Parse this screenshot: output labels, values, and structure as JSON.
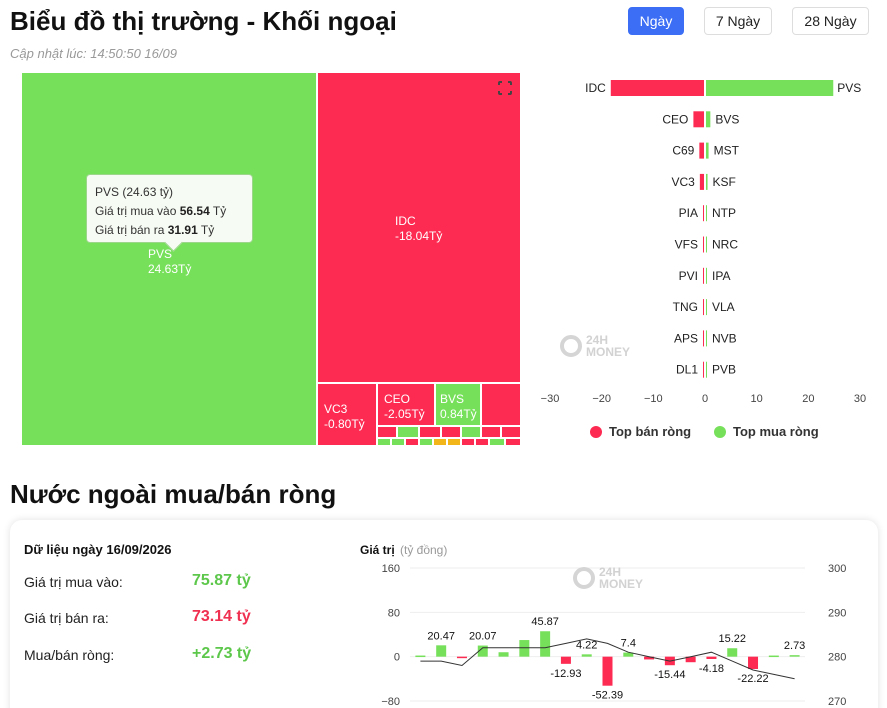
{
  "header": {
    "title": "Biểu đồ thị trường - Khối ngoại",
    "updated": "Cập nhật lúc: 14:50:50 16/09",
    "ranges": [
      "Ngày",
      "7 Ngày",
      "28 Ngày"
    ],
    "active_range": "Ngày"
  },
  "treemap": {
    "cells": [
      {
        "ticker": "PVS",
        "value": "24.63Tỷ",
        "color": "green"
      },
      {
        "ticker": "IDC",
        "value": "-18.04Tỷ",
        "color": "red"
      },
      {
        "ticker": "VC3",
        "value": "-0.80Tỷ",
        "color": "red"
      },
      {
        "ticker": "CEO",
        "value": "-2.05Tỷ",
        "color": "red"
      },
      {
        "ticker": "BVS",
        "value": "0.84Tỷ",
        "color": "green"
      }
    ],
    "tooltip": {
      "title": "PVS (24.63 tỷ)",
      "buy_label": "Giá trị mua vào",
      "buy_value": "56.54",
      "buy_unit": "Tỷ",
      "sell_label": "Giá trị bán ra",
      "sell_value": "31.91",
      "sell_unit": "Tỷ"
    }
  },
  "watermark": {
    "line1": "24H",
    "line2": "MONEY"
  },
  "chart_data": [
    {
      "type": "bar",
      "orientation": "horizontal",
      "sell_side": [
        "IDC",
        "CEO",
        "C69",
        "VC3",
        "PIA",
        "VFS",
        "PVI",
        "TNG",
        "APS",
        "DL1"
      ],
      "buy_side": [
        "PVS",
        "BVS",
        "MST",
        "KSF",
        "NTP",
        "NRC",
        "IPA",
        "VLA",
        "NVB",
        "PVB"
      ],
      "series": [
        {
          "name": "Top bán ròng",
          "values": [
            -18.04,
            -2.05,
            -0.9,
            -0.8,
            -0.1,
            -0.1,
            -0.1,
            -0.1,
            -0.1,
            -0.1
          ]
        },
        {
          "name": "Top mua ròng",
          "values": [
            24.63,
            0.84,
            0.5,
            0.3,
            0.1,
            0.1,
            0.1,
            0.1,
            0.1,
            0.1
          ]
        }
      ],
      "x_ticks": [
        "−30",
        "−20",
        "−10",
        "0",
        "10",
        "20",
        "30"
      ],
      "xlim": [
        -30,
        30
      ],
      "colors": {
        "sell": "#fd2a52",
        "buy": "#77e05b"
      },
      "legend_position": "bottom"
    },
    {
      "type": "bar",
      "title": "Giá trị",
      "unit": "(tỷ đồng)",
      "values": [
        2,
        20.47,
        -2,
        20.07,
        8,
        30,
        45.87,
        -12.93,
        4.22,
        -52.39,
        7.4,
        -5,
        -15.44,
        -10,
        -4.18,
        15.22,
        -22.22,
        2,
        2.73
      ],
      "labels": [
        "",
        "20.47",
        "",
        "20.07",
        "",
        "",
        "45.87",
        "-12.93",
        "4.22",
        "-52.39",
        "7.4",
        "",
        "-15.44",
        "",
        "-4.18",
        "15.22",
        "-22.22",
        "",
        "2.73"
      ],
      "y_ticks": [
        "160",
        "80",
        "0",
        "−80"
      ],
      "ylim": [
        -80,
        160
      ],
      "y2_ticks": [
        "300",
        "290",
        "280",
        "270"
      ],
      "y2lim": [
        270,
        300
      ],
      "index_line": [
        279,
        279,
        278,
        282,
        282,
        282,
        282,
        283,
        284,
        283,
        281,
        280,
        279,
        280,
        281,
        279,
        277,
        276,
        275
      ],
      "colors": {
        "pos": "#77e05b",
        "neg": "#fd2a52"
      }
    }
  ],
  "legend": {
    "sell": "Top bán ròng",
    "buy": "Top mua ròng"
  },
  "net": {
    "heading": "Nước ngoài mua/bán ròng",
    "date": "Dữ liệu ngày 16/09/2026",
    "rows": [
      {
        "label": "Giá trị mua vào:",
        "value": "75.87 tỷ",
        "color": "#5cc74a"
      },
      {
        "label": "Giá trị bán ra:",
        "value": "73.14 tỷ",
        "color": "#f03050"
      },
      {
        "label": "Mua/bán ròng:",
        "value": "+2.73 tỷ",
        "color": "#5cc74a"
      }
    ]
  }
}
